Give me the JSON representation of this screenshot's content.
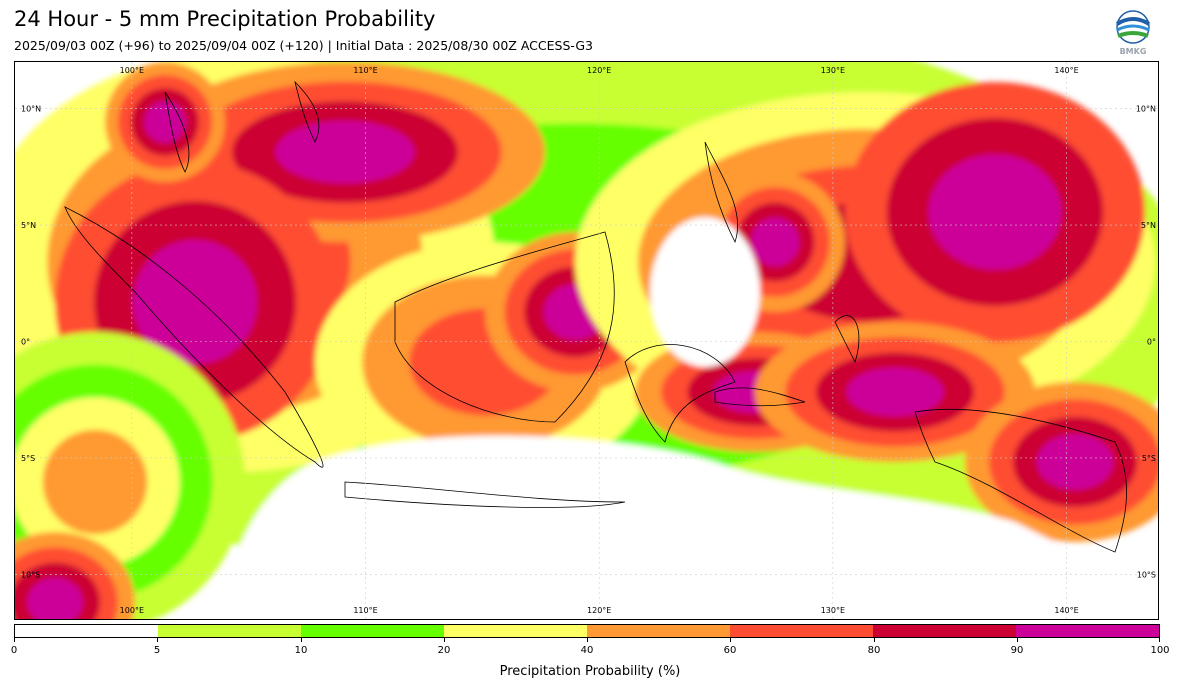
{
  "header": {
    "title": "24 Hour - 5 mm Precipitation Probability",
    "subtitle": "2025/09/03 00Z (+96) to 2025/09/04 00Z (+120) | Initial Data : 2025/08/30 00Z ACCESS-G3"
  },
  "logo": {
    "icon": "bmkg-logo-icon",
    "text": "BMKG"
  },
  "map": {
    "lon_range": [
      95,
      144
    ],
    "lat_range": [
      -12,
      12
    ],
    "lon_labels": [
      "100°E",
      "110°E",
      "120°E",
      "130°E",
      "140°E"
    ],
    "lat_labels": [
      "10°N",
      "5°N",
      "0°",
      "5°S",
      "10°S"
    ],
    "grid": true
  },
  "colorbar": {
    "levels": [
      0,
      5,
      10,
      20,
      40,
      60,
      80,
      90,
      100
    ],
    "tick_labels": [
      "0",
      "5",
      "10",
      "20",
      "40",
      "60",
      "80",
      "90",
      "100"
    ],
    "colors": [
      "#ffffff",
      "#c8ff33",
      "#66ff00",
      "#ffff66",
      "#ff9933",
      "#ff4d33",
      "#cc0033",
      "#cc0099"
    ],
    "label": "Precipitation Probability (%)"
  }
}
